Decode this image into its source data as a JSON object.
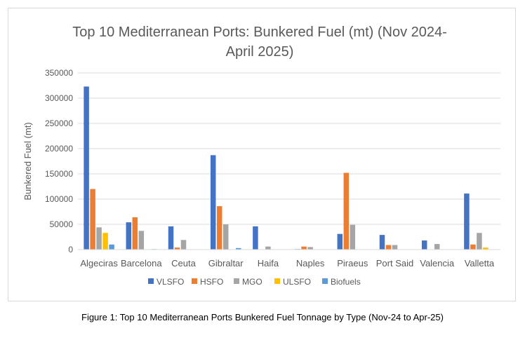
{
  "chart_data": {
    "type": "bar",
    "title_lines": [
      "Top 10 Mediterranean Ports: Bunkered Fuel (mt) (Nov 2024-",
      "April 2025)"
    ],
    "ylabel": "Bunkered Fuel (mt)",
    "xlabel": "",
    "ylim": [
      0,
      350000
    ],
    "yticks": [
      "0",
      "50000",
      "100000",
      "150000",
      "200000",
      "250000",
      "300000",
      "350000"
    ],
    "grid": true,
    "legend_position": "bottom",
    "categories": [
      "Algeciras",
      "Barcelona",
      "Ceuta",
      "Gibraltar",
      "Haifa",
      "Naples",
      "Piraeus",
      "Port Said",
      "Valencia",
      "Valletta"
    ],
    "series": [
      {
        "name": "VLSFO",
        "color": "#4472c4",
        "values": [
          323000,
          54000,
          46000,
          187000,
          46000,
          1000,
          31000,
          29000,
          18000,
          111000
        ]
      },
      {
        "name": "HSFO",
        "color": "#ed7d31",
        "values": [
          120000,
          64000,
          4000,
          86000,
          0,
          6000,
          152000,
          9000,
          0,
          10000
        ]
      },
      {
        "name": "MGO",
        "color": "#a5a5a5",
        "values": [
          44000,
          37000,
          19000,
          50000,
          6000,
          5000,
          49000,
          9000,
          11000,
          33000
        ]
      },
      {
        "name": "ULSFO",
        "color": "#ffc000",
        "values": [
          33000,
          0,
          0,
          0,
          0,
          0,
          0,
          0,
          0,
          4000
        ]
      },
      {
        "name": "Biofuels",
        "color": "#5b9bd5",
        "values": [
          10000,
          1000,
          0,
          3000,
          0,
          0,
          0,
          0,
          0,
          0
        ]
      }
    ]
  },
  "caption": "Figure 1: Top 10 Mediterranean Ports Bunkered Fuel Tonnage by Type (Nov-24 to Apr-25)"
}
